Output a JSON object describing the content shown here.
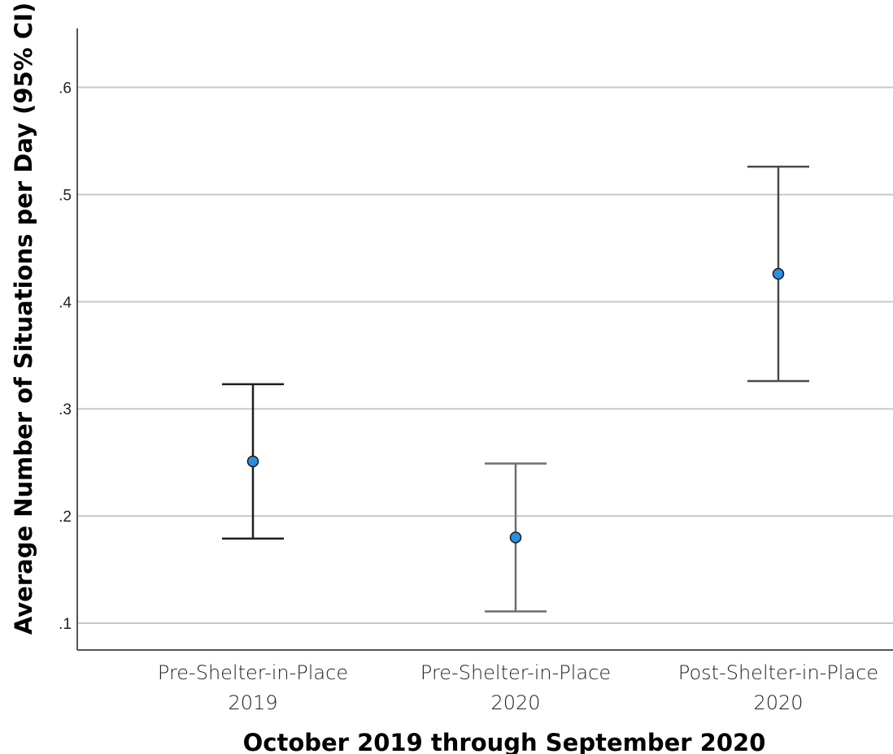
{
  "chart_data": {
    "type": "errorbar",
    "xlabel": "October 2019 through September 2020",
    "ylabel": "Average Number of Situations per Day  (95% CI)",
    "ylim": [
      0.075,
      0.655
    ],
    "yticks": [
      0.1,
      0.2,
      0.3,
      0.4,
      0.5,
      0.6
    ],
    "ytick_labels": [
      ".1",
      ".2",
      ".3",
      ".4",
      ".5",
      ".6"
    ],
    "grid": true,
    "categories": [
      {
        "line1": "Pre-Shelter-in-Place",
        "line2": "2019"
      },
      {
        "line1": "Pre-Shelter-in-Place",
        "line2": "2020"
      },
      {
        "line1": "Post-Shelter-in-Place",
        "line2": "2020"
      }
    ],
    "points": [
      {
        "mean": 0.251,
        "lower": 0.179,
        "upper": 0.323
      },
      {
        "mean": 0.18,
        "lower": 0.111,
        "upper": 0.249
      },
      {
        "mean": 0.426,
        "lower": 0.326,
        "upper": 0.526
      }
    ],
    "colors": {
      "marker_fill": "#2b8fe0",
      "marker_stroke": "#1a1a1a",
      "grid": "#c8c8c8",
      "axis": "#555555",
      "errorbar": [
        "#1e1e1e",
        "#6e6e6e",
        "#4a4a4a"
      ]
    }
  }
}
